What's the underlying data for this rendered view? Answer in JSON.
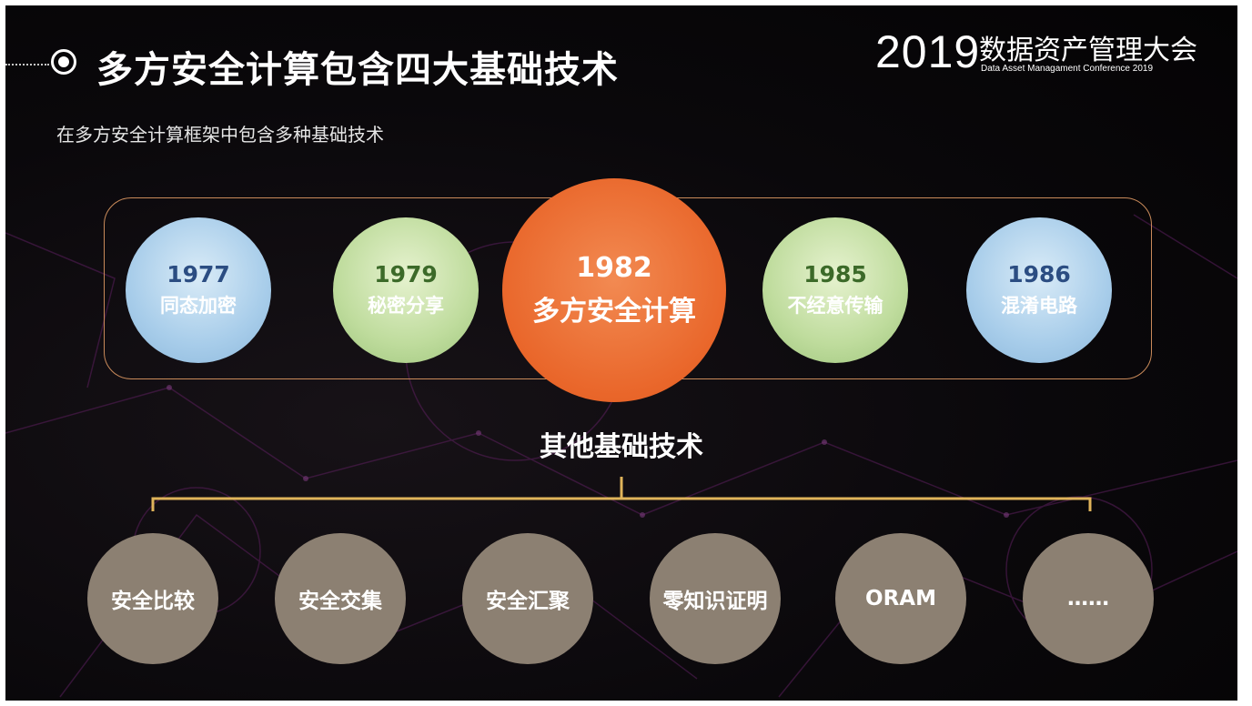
{
  "header": {
    "title": "多方安全计算包含四大基础技术",
    "subtitle": "在多方安全计算框架中包含多种基础技术"
  },
  "logo": {
    "year": "2019",
    "name_cn": "数据资产管理大会",
    "name_en": "Data Asset Managament Conference 2019"
  },
  "timeline": [
    {
      "year": "1977",
      "label": "同态加密",
      "color": "blue"
    },
    {
      "year": "1979",
      "label": "秘密分享",
      "color": "green"
    },
    {
      "year": "1982",
      "label": "多方安全计算",
      "color": "orange"
    },
    {
      "year": "1985",
      "label": "不经意传输",
      "color": "green"
    },
    {
      "year": "1986",
      "label": "混淆电路",
      "color": "blue"
    }
  ],
  "other": {
    "title": "其他基础技术",
    "items": [
      "安全比较",
      "安全交集",
      "安全汇聚",
      "零知识证明",
      "ORAM",
      "……"
    ]
  },
  "colors": {
    "background": "#0a080b",
    "frame": "#c98a5a",
    "bracket": "#e0b45a",
    "center_circle": "#e9662a",
    "other_circle": "#8c8072"
  }
}
